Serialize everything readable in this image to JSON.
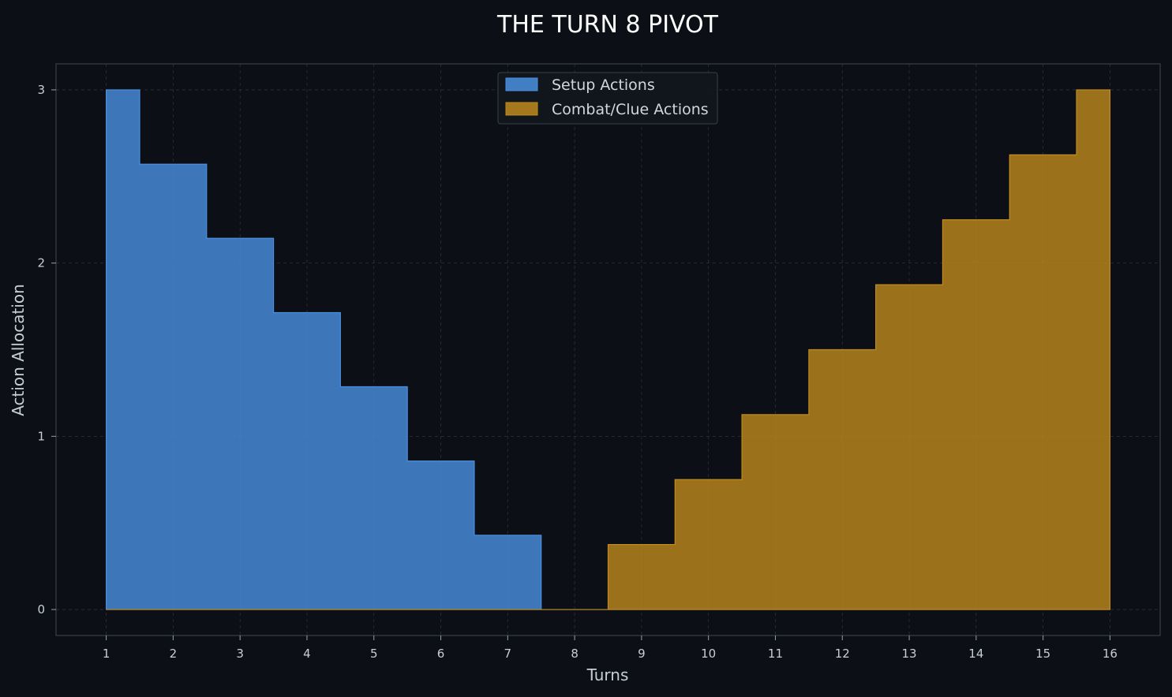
{
  "chart_data": {
    "type": "area",
    "title": "THE TURN 8 PIVOT",
    "xlabel": "Turns",
    "ylabel": "Action Allocation",
    "x": [
      1,
      2,
      3,
      4,
      5,
      6,
      7,
      8,
      9,
      10,
      11,
      12,
      13,
      14,
      15,
      16
    ],
    "xticks": [
      "1",
      "2",
      "3",
      "4",
      "5",
      "6",
      "7",
      "8",
      "9",
      "10",
      "11",
      "12",
      "13",
      "14",
      "15",
      "16"
    ],
    "yticks": [
      "0",
      "1",
      "2",
      "3"
    ],
    "xlim": [
      0.25,
      16.75
    ],
    "ylim": [
      -0.15,
      3.15
    ],
    "step": "mid",
    "grid": true,
    "legend_position": "top-center",
    "series": [
      {
        "name": "Setup Actions",
        "color": "#4a90e2",
        "values": [
          3.0,
          2.571,
          2.143,
          1.714,
          1.286,
          0.857,
          0.429,
          0,
          0,
          0,
          0,
          0,
          0,
          0,
          0,
          0
        ]
      },
      {
        "name": "Combat/Clue Actions",
        "color": "#c08a1e",
        "values": [
          0,
          0,
          0,
          0,
          0,
          0,
          0,
          0,
          0.375,
          0.75,
          1.125,
          1.5,
          1.875,
          2.25,
          2.625,
          3.0
        ]
      }
    ]
  }
}
